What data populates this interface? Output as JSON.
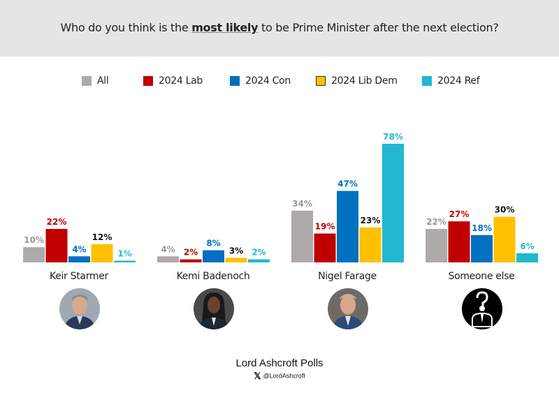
{
  "header": {
    "title_pre": "Who do you think is the ",
    "title_bold": "most likely",
    "title_post": " to be Prime Minister after the next election?"
  },
  "colors": {
    "All": "#aeaaa9",
    "2024 Lab": "#c00000",
    "2024 Con": "#0070c0",
    "2024 Lib Dem": "#ffc000",
    "2024 Ref": "#22b8cf"
  },
  "label_colors": {
    "All": "#9a9696",
    "2024 Lab": "#c00000",
    "2024 Con": "#0070c0",
    "2024 Lib Dem": "#111111",
    "2024 Ref": "#22b8cf"
  },
  "chart_data": {
    "type": "bar",
    "title": "Who do you think is the most likely to be Prime Minister after the next election?",
    "categories": [
      "Keir Starmer",
      "Kemi Badenoch",
      "Nigel Farage",
      "Someone else"
    ],
    "series": [
      {
        "name": "All",
        "values": [
          10,
          4,
          34,
          22
        ]
      },
      {
        "name": "2024 Lab",
        "values": [
          22,
          2,
          19,
          27
        ]
      },
      {
        "name": "2024 Con",
        "values": [
          4,
          8,
          47,
          18
        ]
      },
      {
        "name": "2024 Lib Dem",
        "values": [
          12,
          3,
          23,
          30
        ]
      },
      {
        "name": "2024 Ref",
        "values": [
          1,
          2,
          78,
          6
        ]
      }
    ],
    "value_suffix": "%",
    "legend": "top",
    "grid": false,
    "xlabel": "",
    "ylabel": "",
    "ylim": [
      0,
      80
    ]
  },
  "legend": [
    {
      "label": "All"
    },
    {
      "label": "2024 Lab"
    },
    {
      "label": "2024 Con"
    },
    {
      "label": "2024 Lib Dem"
    },
    {
      "label": "2024 Ref"
    }
  ],
  "candidates": [
    {
      "name": "Keir Starmer",
      "photo": "keir-starmer-photo"
    },
    {
      "name": "Kemi Badenoch",
      "photo": "kemi-badenoch-photo"
    },
    {
      "name": "Nigel Farage",
      "photo": "nigel-farage-photo"
    },
    {
      "name": "Someone else",
      "photo": "question-person-icon"
    }
  ],
  "footer": {
    "brand": "Lord Ashcroft Polls",
    "x_icon": "𝕏",
    "handle": "@LordAshcroft"
  }
}
